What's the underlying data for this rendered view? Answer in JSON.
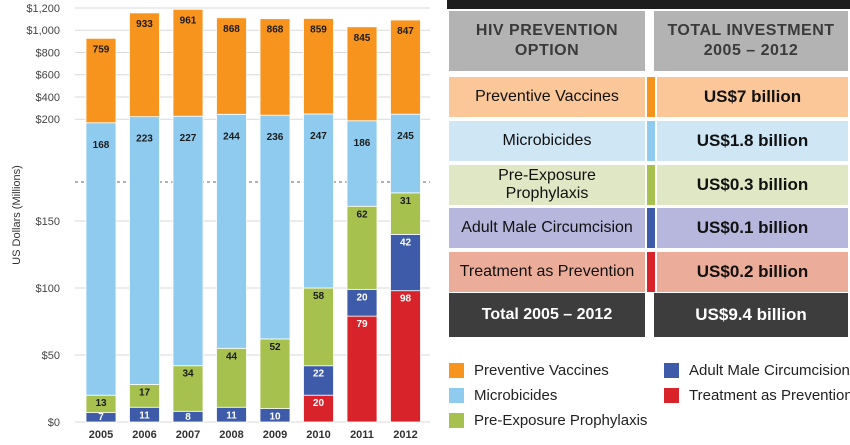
{
  "colors": {
    "vaccines": "#f7941e",
    "microbicides": "#8ecbef",
    "prep": "#a6c14e",
    "circumcision": "#3e5ba9",
    "treatment": "#d8232a",
    "table_vaccines": "#fbc799",
    "table_microbicides": "#cfe6f5",
    "table_prep": "#dfe7c4",
    "table_circumcision": "#b7b6dc",
    "table_treatment": "#ecac9a"
  },
  "chart_data": {
    "type": "bar",
    "stacked": true,
    "broken_axis": true,
    "ylabel": "US Dollars (Millions)",
    "categories": [
      "2005",
      "2006",
      "2007",
      "2008",
      "2009",
      "2010",
      "2011",
      "2012"
    ],
    "yticks_upper": [
      "$1,200",
      "$1,000",
      "$800",
      "$600",
      "$400",
      "$200"
    ],
    "yticks_lower": [
      "$150",
      "$100",
      "$50",
      "$0"
    ],
    "series": [
      {
        "name": "Adult Male Circumcision",
        "values": [
          7,
          11,
          8,
          11,
          10,
          0,
          0,
          0
        ]
      },
      {
        "name": "Treatment as Prevention",
        "values": [
          0,
          0,
          0,
          0,
          0,
          20,
          79,
          98
        ]
      },
      {
        "name": "Adult Male Circumcision",
        "values": [
          0,
          0,
          0,
          0,
          0,
          22,
          20,
          42
        ]
      },
      {
        "name": "Pre-Exposure Prophylaxis",
        "values": [
          13,
          17,
          34,
          44,
          52,
          58,
          62,
          31
        ]
      },
      {
        "name": "Microbicides",
        "values": [
          168,
          223,
          227,
          244,
          236,
          247,
          186,
          245
        ]
      },
      {
        "name": "Preventive Vaccines",
        "values": [
          759,
          933,
          961,
          868,
          868,
          859,
          845,
          847
        ]
      }
    ],
    "labels": {
      "circ_early": [
        "7",
        "11",
        "8",
        "11",
        "10",
        "",
        "",
        ""
      ],
      "treatment": [
        "",
        "",
        "",
        "",
        "",
        "20",
        "79",
        "98"
      ],
      "circ_late": [
        "",
        "",
        "",
        "",
        "",
        "22",
        "20",
        "42"
      ],
      "prep": [
        "13",
        "17",
        "34",
        "44",
        "52",
        "58",
        "62",
        "31"
      ],
      "microbicides": [
        "168",
        "223",
        "227",
        "244",
        "236",
        "247",
        "186",
        "245"
      ],
      "vaccines": [
        "759",
        "933",
        "961",
        "868",
        "868",
        "859",
        "845",
        "847"
      ]
    }
  },
  "table": {
    "header_option": "HIV PREVENTION OPTION",
    "header_investment": "TOTAL INVESTMENT 2005 – 2012",
    "rows": [
      {
        "option": "Preventive Vaccines",
        "value": "US$7 billion"
      },
      {
        "option": "Microbicides",
        "value": "US$1.8 billion"
      },
      {
        "option": "Pre-Exposure Prophylaxis",
        "value": "US$0.3 billion"
      },
      {
        "option": "Adult Male Circumcision",
        "value": "US$0.1 billion"
      },
      {
        "option": "Treatment as Prevention",
        "value": "US$0.2 billion"
      }
    ],
    "total": {
      "option": "Total 2005 – 2012",
      "value": "US$9.4 billion"
    }
  },
  "legend": {
    "vaccines": "Preventive Vaccines",
    "microbicides": "Microbicides",
    "prep": "Pre-Exposure Prophylaxis",
    "circumcision": "Adult Male Circumcision",
    "treatment": "Treatment as Prevention",
    "treatment_mark": "*"
  }
}
